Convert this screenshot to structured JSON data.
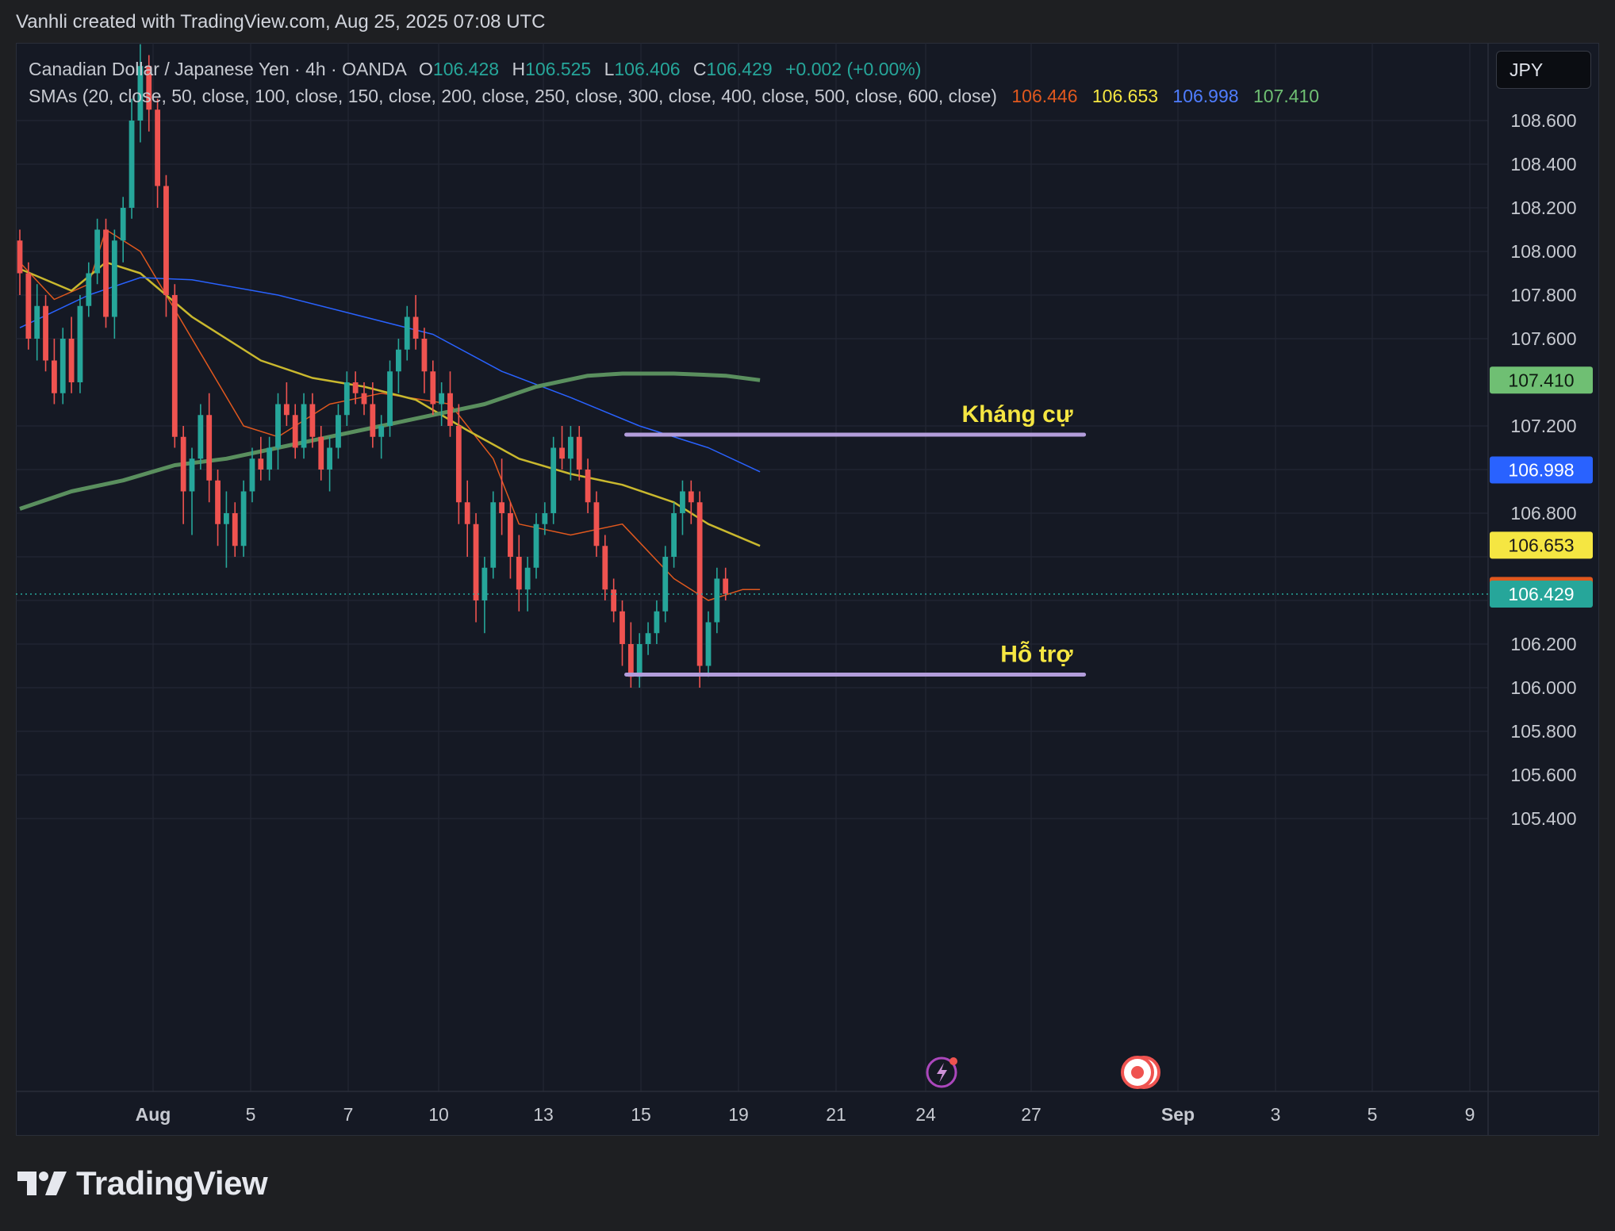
{
  "header": {
    "credit": "Vanhli created with TradingView.com, Aug 25, 2025 07:08 UTC"
  },
  "legend": {
    "symbol": "Canadian Dollar / Japanese Yen · 4h · OANDA",
    "o_label": "O",
    "o_value": "106.428",
    "h_label": "H",
    "h_value": "106.525",
    "l_label": "L",
    "l_value": "106.406",
    "c_label": "C",
    "c_value": "106.429",
    "change": "+0.002 (+0.00%)",
    "sma_label": "SMAs (20, close, 50, close, 100, close, 150, close, 200, close, 250, close, 300, close, 400, close, 500, close, 600, close)",
    "sma_values": [
      "106.446",
      "106.653",
      "106.998",
      "107.410"
    ]
  },
  "currency": "JPY",
  "brand": {
    "name": "TradingView"
  },
  "colors": {
    "up": "#26a69a",
    "down": "#ef5350",
    "sma20": "#e0581e",
    "sma50": "#f5e642",
    "sma100": "#2962ff",
    "sma200": "#6fbf73",
    "level": "#b39ddb",
    "annotation": "#f5e642"
  },
  "chart_data": {
    "type": "candlestick",
    "title": "Canadian Dollar / Japanese Yen · 4h · OANDA",
    "ylim": [
      105.2,
      108.9
    ],
    "y_ticks": [
      "108.600",
      "108.400",
      "108.200",
      "108.000",
      "107.800",
      "107.600",
      "107.200",
      "106.800",
      "106.200",
      "106.000",
      "105.800",
      "105.600",
      "105.400"
    ],
    "x_ticks": [
      {
        "label": "Aug",
        "day": 1
      },
      {
        "label": "5",
        "day": 5
      },
      {
        "label": "7",
        "day": 7
      },
      {
        "label": "10",
        "day": 10
      },
      {
        "label": "13",
        "day": 13
      },
      {
        "label": "15",
        "day": 15
      },
      {
        "label": "19",
        "day": 19
      },
      {
        "label": "21",
        "day": 21
      },
      {
        "label": "24",
        "day": 24
      },
      {
        "label": "27",
        "day": 27
      },
      {
        "label": "Sep",
        "day": 32
      },
      {
        "label": "3",
        "day": 34
      },
      {
        "label": "5",
        "day": 36
      },
      {
        "label": "9",
        "day": 40
      }
    ],
    "x_tick_positions": {
      "1": 193,
      "5": 316,
      "7": 439,
      "10": 553,
      "13": 685,
      "15": 808,
      "19": 931,
      "21": 1054,
      "24": 1167,
      "27": 1300,
      "32": 1485,
      "34": 1608,
      "36": 1730,
      "40": 1853
    },
    "levels": [
      {
        "name": "Kháng cự",
        "price": 107.16,
        "from_day": 14.7,
        "to_day": 28.8
      },
      {
        "name": "Hỗ trợ",
        "price": 106.06,
        "from_day": 14.7,
        "to_day": 28.8
      }
    ],
    "price_labels": [
      {
        "value": "107.410",
        "price": 107.41,
        "color": "#6fbf73",
        "text_color": "#0e1a10"
      },
      {
        "value": "106.998",
        "price": 106.998,
        "color": "#2962ff",
        "text_color": "#ffffff"
      },
      {
        "value": "106.653",
        "price": 106.653,
        "color": "#f5e642",
        "text_color": "#1a1a1a"
      },
      {
        "value": "106.446",
        "price": 106.446,
        "color": "#e0581e",
        "text_color": "#ffffff"
      },
      {
        "value": "106.429",
        "price": 106.429,
        "color": "#26a69a",
        "text_color": "#ffffff"
      }
    ],
    "last_price": 106.429,
    "candles": [
      {
        "o": 108.05,
        "h": 108.1,
        "l": 107.8,
        "c": 107.9
      },
      {
        "o": 107.9,
        "h": 107.95,
        "l": 107.55,
        "c": 107.6
      },
      {
        "o": 107.6,
        "h": 107.85,
        "l": 107.5,
        "c": 107.75
      },
      {
        "o": 107.75,
        "h": 107.8,
        "l": 107.45,
        "c": 107.5
      },
      {
        "o": 107.5,
        "h": 107.6,
        "l": 107.3,
        "c": 107.35
      },
      {
        "o": 107.35,
        "h": 107.65,
        "l": 107.3,
        "c": 107.6
      },
      {
        "o": 107.6,
        "h": 107.7,
        "l": 107.35,
        "c": 107.4
      },
      {
        "o": 107.4,
        "h": 107.8,
        "l": 107.35,
        "c": 107.75
      },
      {
        "o": 107.75,
        "h": 107.95,
        "l": 107.7,
        "c": 107.9
      },
      {
        "o": 107.9,
        "h": 108.15,
        "l": 107.85,
        "c": 108.1
      },
      {
        "o": 108.1,
        "h": 108.15,
        "l": 107.65,
        "c": 107.7
      },
      {
        "o": 107.7,
        "h": 108.1,
        "l": 107.6,
        "c": 108.05
      },
      {
        "o": 108.05,
        "h": 108.25,
        "l": 107.95,
        "c": 108.2
      },
      {
        "o": 108.2,
        "h": 108.7,
        "l": 108.15,
        "c": 108.6
      },
      {
        "o": 108.6,
        "h": 108.95,
        "l": 108.5,
        "c": 108.85
      },
      {
        "o": 108.85,
        "h": 108.9,
        "l": 108.55,
        "c": 108.65
      },
      {
        "o": 108.65,
        "h": 108.7,
        "l": 108.2,
        "c": 108.3
      },
      {
        "o": 108.3,
        "h": 108.35,
        "l": 107.7,
        "c": 107.8
      },
      {
        "o": 107.8,
        "h": 107.85,
        "l": 107.1,
        "c": 107.15
      },
      {
        "o": 107.15,
        "h": 107.2,
        "l": 106.75,
        "c": 106.9
      },
      {
        "o": 106.9,
        "h": 107.1,
        "l": 106.7,
        "c": 107.05
      },
      {
        "o": 107.05,
        "h": 107.3,
        "l": 107.0,
        "c": 107.25
      },
      {
        "o": 107.25,
        "h": 107.35,
        "l": 106.85,
        "c": 106.95
      },
      {
        "o": 106.95,
        "h": 107.0,
        "l": 106.65,
        "c": 106.75
      },
      {
        "o": 106.75,
        "h": 106.9,
        "l": 106.55,
        "c": 106.8
      },
      {
        "o": 106.8,
        "h": 106.85,
        "l": 106.6,
        "c": 106.65
      },
      {
        "o": 106.65,
        "h": 106.95,
        "l": 106.6,
        "c": 106.9
      },
      {
        "o": 106.9,
        "h": 107.1,
        "l": 106.85,
        "c": 107.05
      },
      {
        "o": 107.05,
        "h": 107.15,
        "l": 106.95,
        "c": 107.0
      },
      {
        "o": 107.0,
        "h": 107.15,
        "l": 106.95,
        "c": 107.1
      },
      {
        "o": 107.1,
        "h": 107.35,
        "l": 107.0,
        "c": 107.3
      },
      {
        "o": 107.3,
        "h": 107.4,
        "l": 107.2,
        "c": 107.25
      },
      {
        "o": 107.25,
        "h": 107.3,
        "l": 107.05,
        "c": 107.1
      },
      {
        "o": 107.1,
        "h": 107.35,
        "l": 107.05,
        "c": 107.3
      },
      {
        "o": 107.3,
        "h": 107.35,
        "l": 107.1,
        "c": 107.15
      },
      {
        "o": 107.15,
        "h": 107.2,
        "l": 106.95,
        "c": 107.0
      },
      {
        "o": 107.0,
        "h": 107.15,
        "l": 106.9,
        "c": 107.1
      },
      {
        "o": 107.1,
        "h": 107.3,
        "l": 107.05,
        "c": 107.25
      },
      {
        "o": 107.25,
        "h": 107.45,
        "l": 107.2,
        "c": 107.4
      },
      {
        "o": 107.4,
        "h": 107.45,
        "l": 107.3,
        "c": 107.35
      },
      {
        "o": 107.35,
        "h": 107.4,
        "l": 107.25,
        "c": 107.3
      },
      {
        "o": 107.3,
        "h": 107.4,
        "l": 107.1,
        "c": 107.15
      },
      {
        "o": 107.15,
        "h": 107.25,
        "l": 107.05,
        "c": 107.2
      },
      {
        "o": 107.2,
        "h": 107.5,
        "l": 107.15,
        "c": 107.45
      },
      {
        "o": 107.45,
        "h": 107.6,
        "l": 107.35,
        "c": 107.55
      },
      {
        "o": 107.55,
        "h": 107.75,
        "l": 107.5,
        "c": 107.7
      },
      {
        "o": 107.7,
        "h": 107.8,
        "l": 107.55,
        "c": 107.6
      },
      {
        "o": 107.6,
        "h": 107.65,
        "l": 107.35,
        "c": 107.45
      },
      {
        "o": 107.45,
        "h": 107.5,
        "l": 107.25,
        "c": 107.3
      },
      {
        "o": 107.3,
        "h": 107.4,
        "l": 107.2,
        "c": 107.35
      },
      {
        "o": 107.35,
        "h": 107.45,
        "l": 107.15,
        "c": 107.2
      },
      {
        "o": 107.2,
        "h": 107.3,
        "l": 106.75,
        "c": 106.85
      },
      {
        "o": 106.85,
        "h": 106.95,
        "l": 106.6,
        "c": 106.75
      },
      {
        "o": 106.75,
        "h": 106.8,
        "l": 106.3,
        "c": 106.4
      },
      {
        "o": 106.4,
        "h": 106.6,
        "l": 106.25,
        "c": 106.55
      },
      {
        "o": 106.55,
        "h": 106.9,
        "l": 106.5,
        "c": 106.85
      },
      {
        "o": 106.85,
        "h": 107.05,
        "l": 106.7,
        "c": 106.8
      },
      {
        "o": 106.8,
        "h": 106.85,
        "l": 106.5,
        "c": 106.6
      },
      {
        "o": 106.6,
        "h": 106.7,
        "l": 106.35,
        "c": 106.45
      },
      {
        "o": 106.45,
        "h": 106.6,
        "l": 106.35,
        "c": 106.55
      },
      {
        "o": 106.55,
        "h": 106.8,
        "l": 106.5,
        "c": 106.75
      },
      {
        "o": 106.75,
        "h": 106.85,
        "l": 106.7,
        "c": 106.8
      },
      {
        "o": 106.8,
        "h": 107.15,
        "l": 106.75,
        "c": 107.1
      },
      {
        "o": 107.1,
        "h": 107.2,
        "l": 107.0,
        "c": 107.05
      },
      {
        "o": 107.05,
        "h": 107.2,
        "l": 106.95,
        "c": 107.15
      },
      {
        "o": 107.15,
        "h": 107.2,
        "l": 106.95,
        "c": 107.0
      },
      {
        "o": 107.0,
        "h": 107.05,
        "l": 106.8,
        "c": 106.85
      },
      {
        "o": 106.85,
        "h": 106.9,
        "l": 106.6,
        "c": 106.65
      },
      {
        "o": 106.65,
        "h": 106.7,
        "l": 106.4,
        "c": 106.45
      },
      {
        "o": 106.45,
        "h": 106.5,
        "l": 106.3,
        "c": 106.35
      },
      {
        "o": 106.35,
        "h": 106.4,
        "l": 106.1,
        "c": 106.2
      },
      {
        "o": 106.2,
        "h": 106.3,
        "l": 106.0,
        "c": 106.05
      },
      {
        "o": 106.05,
        "h": 106.25,
        "l": 106.0,
        "c": 106.2
      },
      {
        "o": 106.2,
        "h": 106.3,
        "l": 106.15,
        "c": 106.25
      },
      {
        "o": 106.25,
        "h": 106.4,
        "l": 106.2,
        "c": 106.35
      },
      {
        "o": 106.35,
        "h": 106.65,
        "l": 106.3,
        "c": 106.6
      },
      {
        "o": 106.6,
        "h": 106.85,
        "l": 106.55,
        "c": 106.8
      },
      {
        "o": 106.8,
        "h": 106.95,
        "l": 106.7,
        "c": 106.9
      },
      {
        "o": 106.9,
        "h": 106.95,
        "l": 106.75,
        "c": 106.85
      },
      {
        "o": 106.85,
        "h": 106.9,
        "l": 106.0,
        "c": 106.1
      },
      {
        "o": 106.1,
        "h": 106.35,
        "l": 106.05,
        "c": 106.3
      },
      {
        "o": 106.3,
        "h": 106.55,
        "l": 106.25,
        "c": 106.5
      },
      {
        "o": 106.5,
        "h": 106.55,
        "l": 106.4,
        "c": 106.43
      }
    ],
    "smas": [
      {
        "period": 20,
        "color": "#e0581e",
        "width": 1.5,
        "points": [
          [
            0,
            107.95
          ],
          [
            4,
            107.78
          ],
          [
            8,
            107.85
          ],
          [
            10,
            108.1
          ],
          [
            14,
            108.0
          ],
          [
            20,
            107.6
          ],
          [
            26,
            107.2
          ],
          [
            30,
            107.15
          ],
          [
            36,
            107.3
          ],
          [
            42,
            107.35
          ],
          [
            50,
            107.3
          ],
          [
            55,
            107.05
          ],
          [
            58,
            106.75
          ],
          [
            64,
            106.7
          ],
          [
            70,
            106.75
          ],
          [
            76,
            106.5
          ],
          [
            80,
            106.4
          ],
          [
            84,
            106.45
          ],
          [
            86,
            106.45
          ]
        ]
      },
      {
        "period": 50,
        "color": "#c9b82e",
        "width": 2.5,
        "points": [
          [
            0,
            107.92
          ],
          [
            6,
            107.82
          ],
          [
            10,
            107.95
          ],
          [
            14,
            107.9
          ],
          [
            20,
            107.7
          ],
          [
            28,
            107.5
          ],
          [
            34,
            107.42
          ],
          [
            40,
            107.38
          ],
          [
            46,
            107.32
          ],
          [
            52,
            107.18
          ],
          [
            58,
            107.05
          ],
          [
            64,
            106.98
          ],
          [
            70,
            106.93
          ],
          [
            76,
            106.85
          ],
          [
            80,
            106.75
          ],
          [
            86,
            106.65
          ]
        ]
      },
      {
        "period": 100,
        "color": "#2962ff",
        "width": 1.5,
        "points": [
          [
            0,
            107.65
          ],
          [
            8,
            107.8
          ],
          [
            14,
            107.88
          ],
          [
            20,
            107.87
          ],
          [
            30,
            107.8
          ],
          [
            40,
            107.7
          ],
          [
            48,
            107.62
          ],
          [
            56,
            107.45
          ],
          [
            64,
            107.33
          ],
          [
            72,
            107.2
          ],
          [
            80,
            107.1
          ],
          [
            86,
            106.99
          ]
        ]
      },
      {
        "period": 200,
        "color": "#5a8f5e",
        "width": 5,
        "points": [
          [
            0,
            106.82
          ],
          [
            6,
            106.9
          ],
          [
            12,
            106.95
          ],
          [
            18,
            107.02
          ],
          [
            24,
            107.05
          ],
          [
            30,
            107.1
          ],
          [
            36,
            107.15
          ],
          [
            42,
            107.2
          ],
          [
            48,
            107.25
          ],
          [
            54,
            107.3
          ],
          [
            60,
            107.38
          ],
          [
            66,
            107.43
          ],
          [
            70,
            107.44
          ],
          [
            76,
            107.44
          ],
          [
            82,
            107.43
          ],
          [
            86,
            107.41
          ]
        ]
      }
    ]
  }
}
